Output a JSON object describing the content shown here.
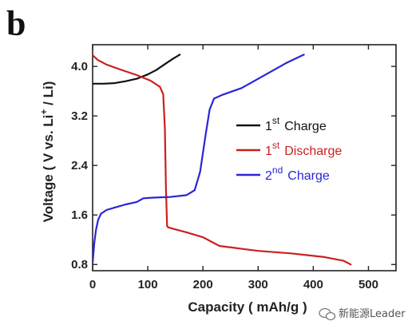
{
  "panel_label": "b",
  "watermark": {
    "text": "新能源Leader",
    "icon": "wechat-icon"
  },
  "chart_data": {
    "type": "line",
    "xlabel": "Capacity ( mAh/g )",
    "ylabel_parts": {
      "before": "Voltage ( V vs. Li",
      "sup": "+",
      "after": " / Li)"
    },
    "xlim": [
      0,
      550
    ],
    "ylim": [
      0.7,
      4.35
    ],
    "xticks": [
      "0",
      "100",
      "200",
      "300",
      "400",
      "500"
    ],
    "yticks": [
      "0.8",
      "1.6",
      "2.4",
      "3.2",
      "4.0"
    ],
    "grid": false,
    "legend_position": "center-right",
    "series": [
      {
        "name": "1st Charge",
        "name_parts": {
          "num": "1",
          "sup": "st",
          "word": "Charge"
        },
        "color": "#111111",
        "x": [
          0,
          20,
          40,
          60,
          80,
          100,
          115,
          130,
          145,
          158
        ],
        "y": [
          3.72,
          3.72,
          3.73,
          3.76,
          3.8,
          3.87,
          3.94,
          4.03,
          4.12,
          4.19
        ]
      },
      {
        "name": "1st Discharge",
        "name_parts": {
          "num": "1",
          "sup": "st",
          "word": "Discharge"
        },
        "color": "#cc1f1f",
        "x": [
          0,
          10,
          25,
          50,
          80,
          105,
          122,
          128,
          131,
          133,
          135,
          137,
          145,
          170,
          200,
          230,
          300,
          360,
          420,
          455,
          468
        ],
        "y": [
          4.18,
          4.1,
          4.03,
          3.95,
          3.86,
          3.77,
          3.67,
          3.55,
          3.0,
          2.0,
          1.42,
          1.4,
          1.38,
          1.32,
          1.24,
          1.1,
          1.02,
          0.98,
          0.92,
          0.86,
          0.8
        ]
      },
      {
        "name": "2nd Charge",
        "name_parts": {
          "num": "2",
          "sup": "nd",
          "word": "Charge"
        },
        "color": "#2a25d6",
        "x": [
          0,
          3,
          6,
          10,
          15,
          25,
          40,
          60,
          80,
          92,
          110,
          140,
          170,
          185,
          195,
          205,
          212,
          220,
          235,
          270,
          310,
          350,
          383
        ],
        "y": [
          0.82,
          1.15,
          1.35,
          1.52,
          1.62,
          1.68,
          1.72,
          1.77,
          1.81,
          1.87,
          1.88,
          1.89,
          1.92,
          2.0,
          2.3,
          2.9,
          3.3,
          3.48,
          3.54,
          3.65,
          3.85,
          4.05,
          4.19
        ]
      }
    ]
  }
}
